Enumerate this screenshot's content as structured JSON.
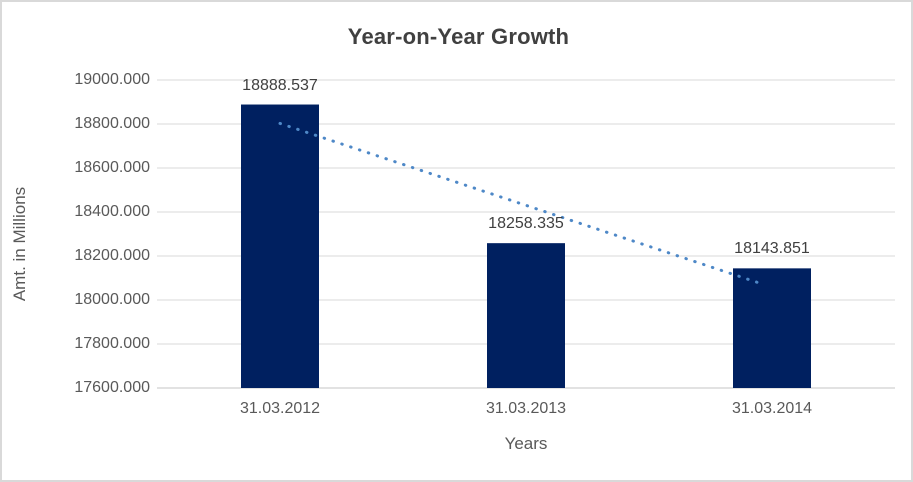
{
  "window": {
    "background": "#ffffff",
    "border_color": "#d9d9d9"
  },
  "chart_data": {
    "type": "bar",
    "title": "Year-on-Year Growth",
    "categories": [
      "31.03.2012",
      "31.03.2013",
      "31.03.2014"
    ],
    "values": [
      18888.537,
      18258.335,
      18143.851
    ],
    "data_labels": [
      "18888.537",
      "18258.335",
      "18143.851"
    ],
    "xlabel": "Years",
    "ylabel": "Amt. in Millions",
    "ylim": [
      17600,
      19000
    ],
    "ytick_step": 200,
    "ytick_labels": [
      "19000.000",
      "18800.000",
      "18600.000",
      "18400.000",
      "18200.000",
      "18000.000",
      "17800.000",
      "17600.000"
    ],
    "grid": true,
    "legend": false,
    "trendline": {
      "type": "linear",
      "style": "dotted",
      "color": "#4e88c7"
    },
    "colors": {
      "bar": "#002060",
      "gridline": "#d9d9d9",
      "axis_line": "#c6c6c6",
      "title_text": "#404040",
      "tick_text": "#595959",
      "data_label_text": "#404040"
    }
  }
}
